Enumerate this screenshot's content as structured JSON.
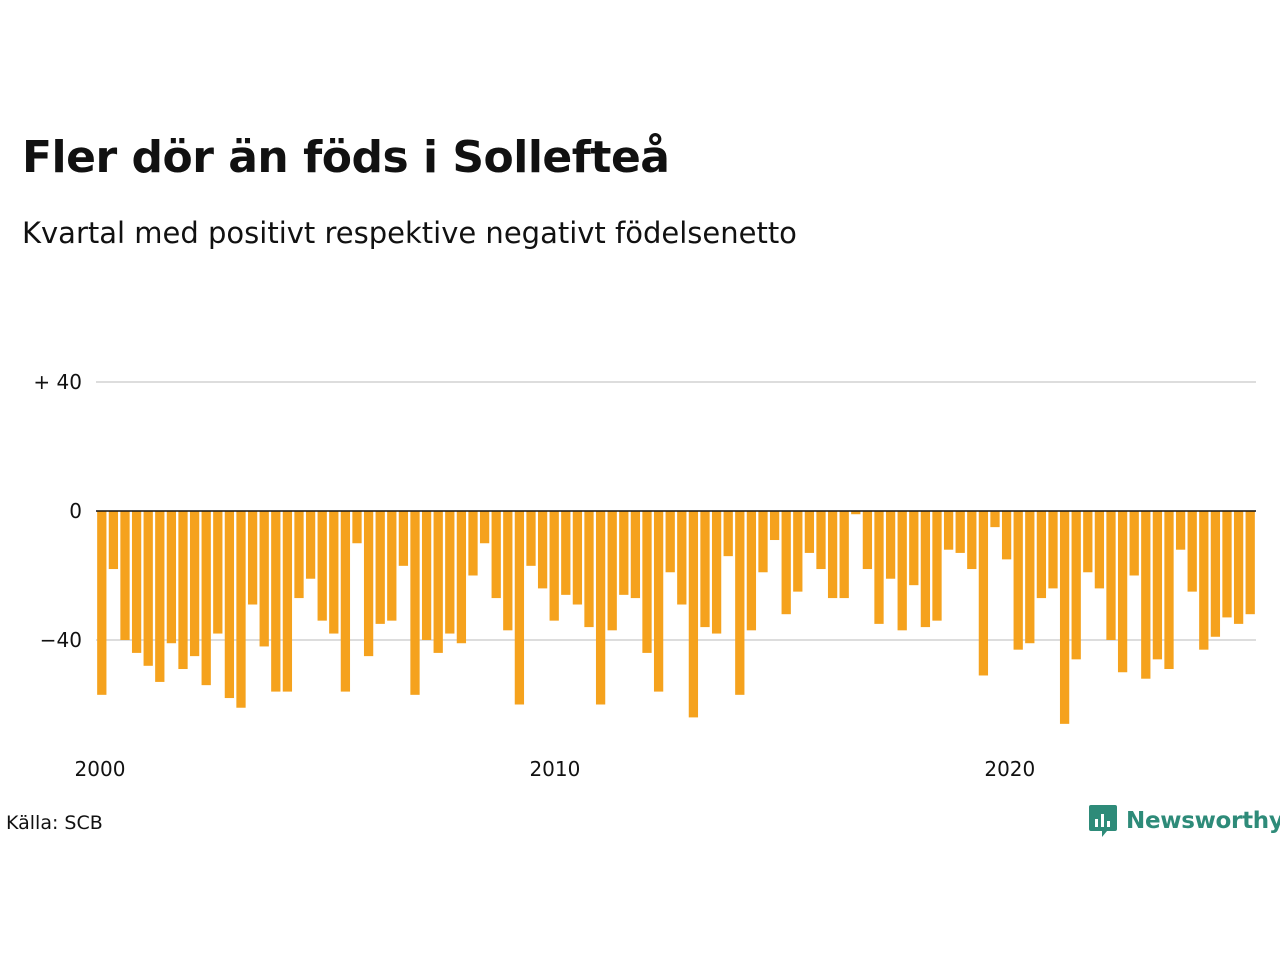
{
  "title": "Fler dör än föds i Sollefteå",
  "subtitle": "Kvartal med positivt respektive negativt födelsenetto",
  "source": "Källa: SCB",
  "brand": {
    "name": "Newsworthy",
    "color": "#2e8b79",
    "icon": "newsworthy-chat-chart-icon"
  },
  "chart_data": {
    "type": "bar",
    "title": "Fler dör än föds i Sollefteå",
    "subtitle": "Kvartal med positivt respektive negativt födelsenetto",
    "bar_color": "#f5a21d",
    "ylim": [
      -70,
      55
    ],
    "yticks": [
      40,
      0,
      -40
    ],
    "ytick_labels": [
      "+ 40",
      "0",
      "−40"
    ],
    "xlim": [
      2000.0,
      2025.5
    ],
    "xticks": [
      2000,
      2010,
      2020
    ],
    "xtick_labels": [
      "2000",
      "2010",
      "2020"
    ],
    "grid": true,
    "quarters_start": "2000-Q1",
    "values": [
      -57,
      -18,
      -40,
      -44,
      -48,
      -53,
      -41,
      -49,
      -45,
      -54,
      -38,
      -58,
      -61,
      -29,
      -42,
      -56,
      -56,
      -27,
      -21,
      -34,
      -38,
      -56,
      -10,
      -45,
      -35,
      -34,
      -17,
      -57,
      -40,
      -44,
      -38,
      -41,
      -20,
      -10,
      -27,
      -37,
      -60,
      -17,
      -24,
      -34,
      -26,
      -29,
      -36,
      -60,
      -37,
      -26,
      -27,
      -44,
      -56,
      -19,
      -29,
      -64,
      -36,
      -38,
      -14,
      -57,
      -37,
      -19,
      -9,
      -32,
      -25,
      -13,
      -18,
      -27,
      -27,
      -1,
      -18,
      -35,
      -21,
      -37,
      -23,
      -36,
      -34,
      -12,
      -13,
      -18,
      -51,
      -5,
      -15,
      -43,
      -41,
      -27,
      -24,
      -66,
      -46,
      -19,
      -24,
      -40,
      -50,
      -20,
      -52,
      -46,
      -49,
      -12,
      -25,
      -43,
      -39,
      -33,
      -35,
      -32
    ]
  }
}
